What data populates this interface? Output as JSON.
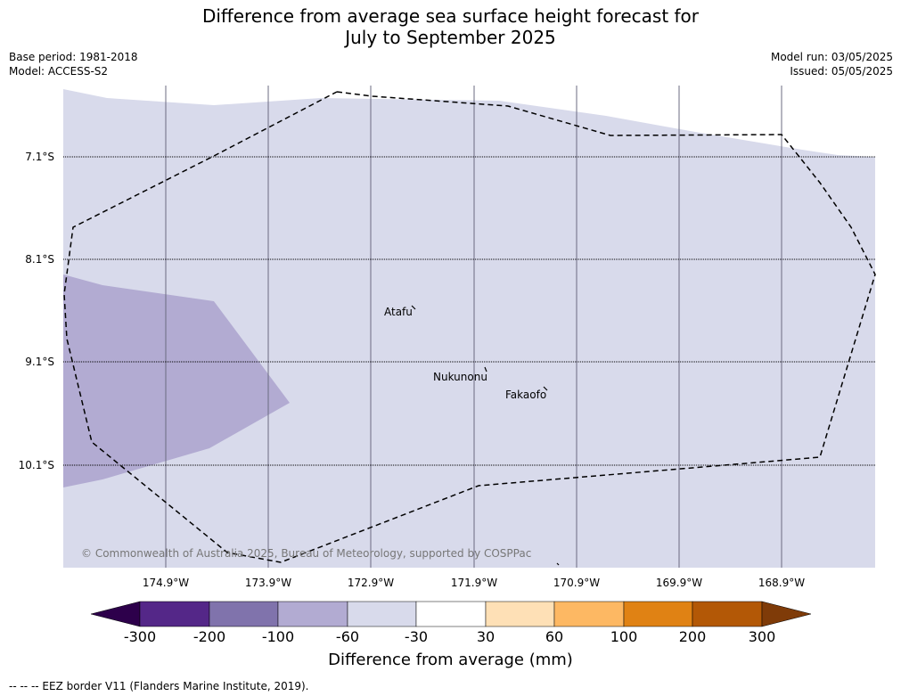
{
  "title": {
    "line1": "Difference from average sea surface height forecast for",
    "line2": "July to September 2025"
  },
  "meta": {
    "base_period": "Base period: 1981-2018",
    "model": "Model: ACCESS-S2",
    "model_run": "Model run: 03/05/2025",
    "issued": "Issued: 05/05/2025"
  },
  "map": {
    "lat_labels": [
      "7.1°S",
      "8.1°S",
      "9.1°S",
      "10.1°S"
    ],
    "lon_labels": [
      "174.9°W",
      "173.9°W",
      "172.9°W",
      "171.9°W",
      "170.9°W",
      "169.9°W",
      "168.9°W"
    ],
    "places": [
      "Atafu",
      "Nukunonu",
      "Fakaofo"
    ],
    "copyright": "© Commonwealth of Australia 2025, Bureau of Meteorology, supported by COSPPac",
    "regions": {
      "background_class": "-60 to -30",
      "anomaly_class": "-100 to -60"
    }
  },
  "colorbar": {
    "ticks": [
      "-300",
      "-200",
      "-100",
      "-60",
      "-30",
      "30",
      "60",
      "100",
      "200",
      "300"
    ],
    "colors": [
      "#2d004b",
      "#542788",
      "#8073ac",
      "#b2abd2",
      "#d8daeb",
      "#ffffff",
      "#fee0b6",
      "#fdb863",
      "#e08214",
      "#b35806",
      "#7f3b08"
    ],
    "label": "Difference from average (mm)"
  },
  "footer": "--  --  -- EEZ border V11 (Flanders Marine Institute, 2019)."
}
